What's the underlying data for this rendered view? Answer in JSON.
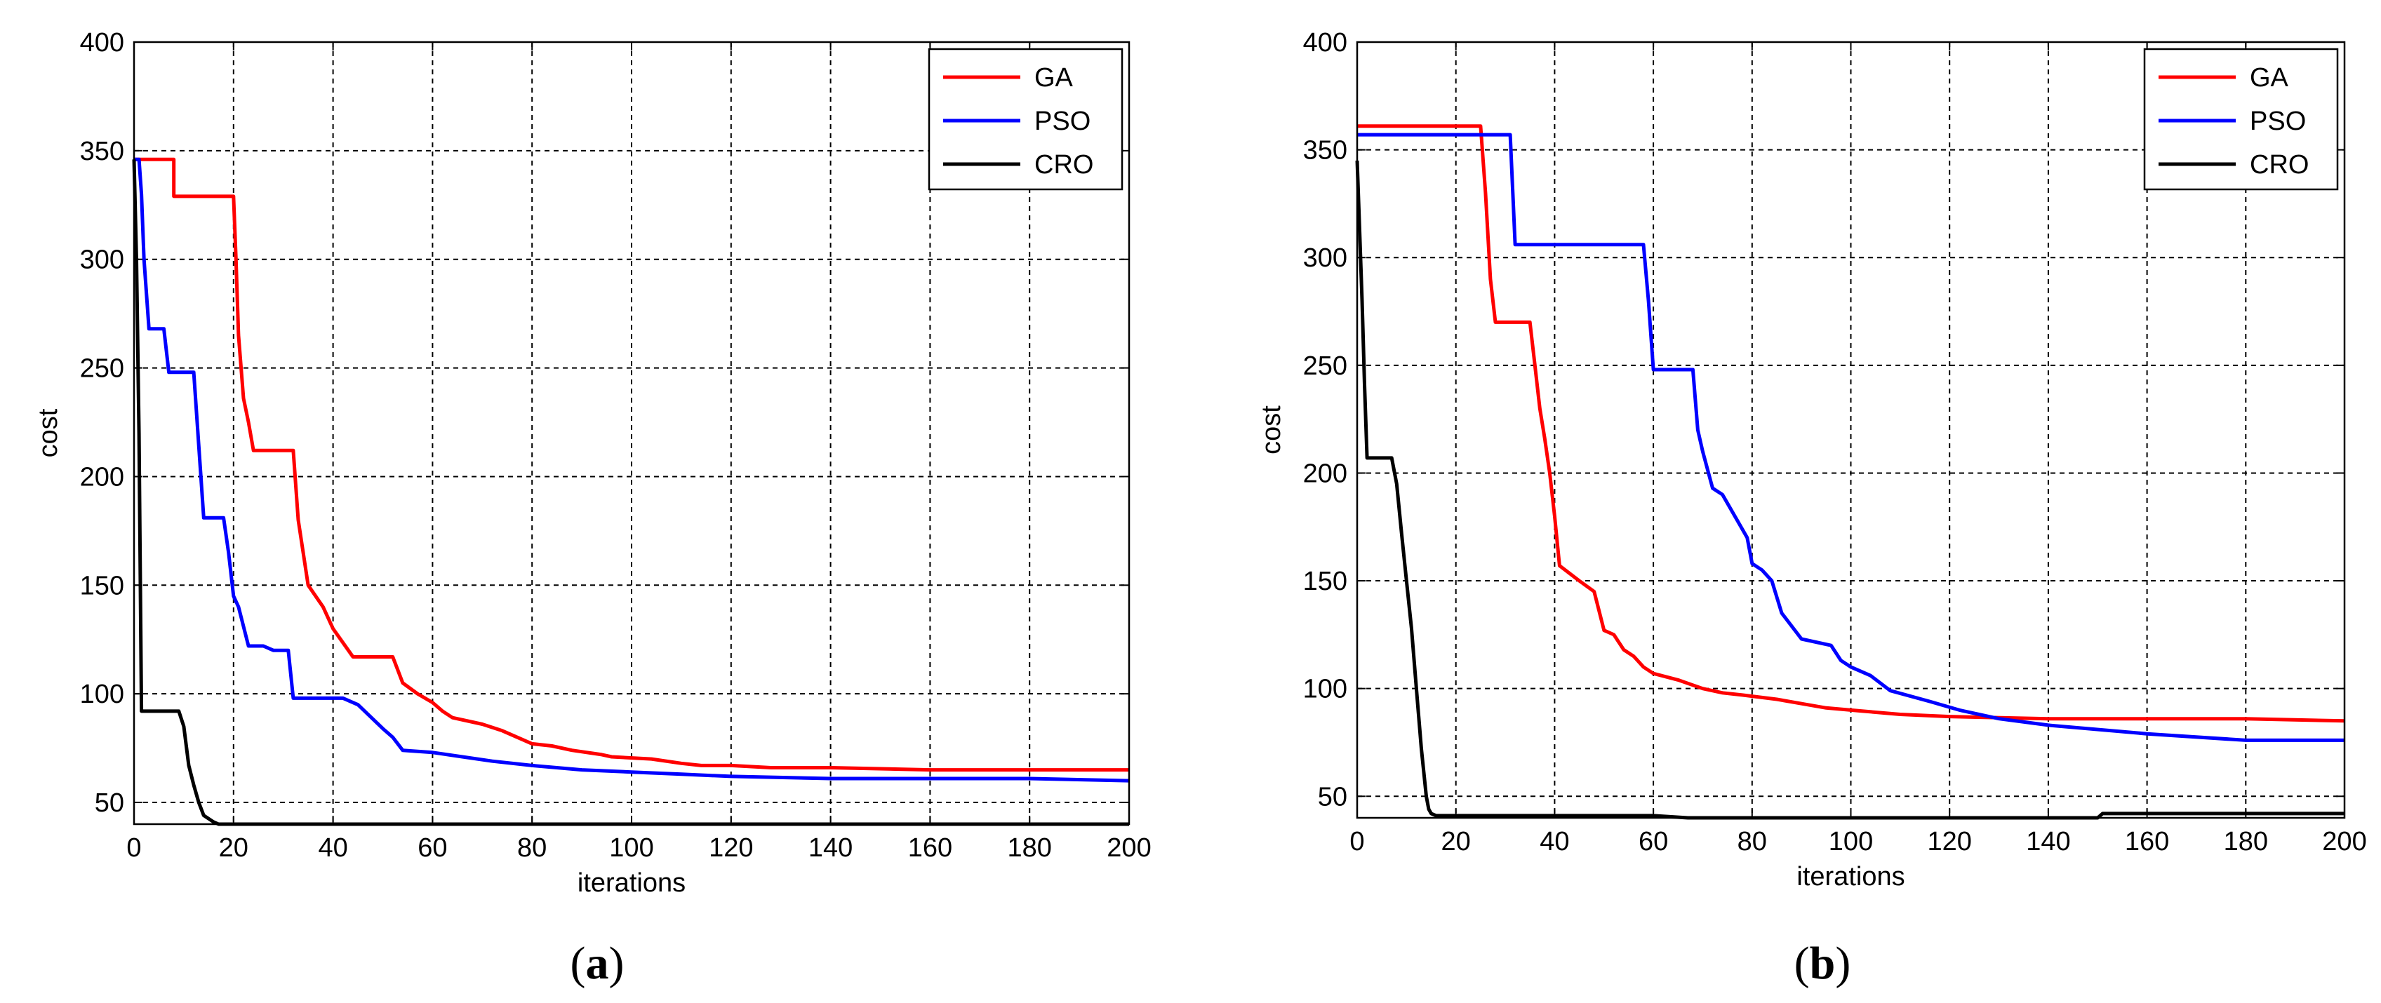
{
  "chart_data": [
    {
      "type": "line",
      "caption": "a",
      "xlabel": "iterations",
      "ylabel": "cost",
      "xlim": [
        0,
        200
      ],
      "ylim": [
        40,
        400
      ],
      "xticks": [
        "0",
        "20",
        "40",
        "60",
        "80",
        "100",
        "120",
        "140",
        "160",
        "180",
        "200"
      ],
      "yticks": [
        "50",
        "100",
        "150",
        "200",
        "250",
        "300",
        "350",
        "400"
      ],
      "grid": true,
      "legend": "top-right",
      "colors": {
        "GA": "#ff0000",
        "PSO": "#0000ff",
        "CRO": "#000000"
      },
      "series": [
        {
          "name": "GA",
          "x": [
            0,
            8,
            8,
            20,
            20.5,
            21,
            22,
            23,
            24,
            32,
            33,
            35,
            38,
            40,
            44,
            52,
            54,
            57,
            60,
            62,
            64,
            70,
            74,
            78,
            80,
            84,
            88,
            94,
            96,
            104,
            110,
            114,
            120,
            128,
            140,
            160,
            200
          ],
          "y": [
            346,
            346,
            329,
            329,
            300,
            265,
            236,
            225,
            212,
            212,
            180,
            150,
            140,
            130,
            117,
            117,
            105,
            100,
            96,
            92,
            89,
            86,
            83,
            79,
            77,
            76,
            74,
            72,
            71,
            70,
            68,
            67,
            67,
            66,
            66,
            65,
            65
          ]
        },
        {
          "name": "PSO",
          "x": [
            0,
            1,
            1.5,
            2,
            3,
            6,
            7,
            12,
            14,
            18,
            19,
            20,
            21,
            23,
            26,
            28,
            31,
            32,
            42,
            45,
            50,
            52,
            54,
            60,
            66,
            72,
            80,
            90,
            100,
            110,
            120,
            140,
            180,
            200
          ],
          "y": [
            346,
            346,
            330,
            300,
            268,
            268,
            248,
            248,
            181,
            181,
            165,
            145,
            140,
            122,
            122,
            120,
            120,
            98,
            98,
            95,
            84,
            80,
            74,
            73,
            71,
            69,
            67,
            65,
            64,
            63,
            62,
            61,
            61,
            60
          ]
        },
        {
          "name": "CRO",
          "x": [
            0,
            0.5,
            1,
            1.5,
            9,
            10,
            11,
            12,
            13,
            14,
            16,
            17,
            20,
            40,
            60,
            100,
            140,
            200
          ],
          "y": [
            346,
            300,
            220,
            92,
            92,
            85,
            67,
            58,
            50,
            44,
            41,
            40,
            40,
            40,
            40,
            40,
            40,
            40
          ]
        }
      ]
    },
    {
      "type": "line",
      "caption": "b",
      "xlabel": "iterations",
      "ylabel": "cost",
      "xlim": [
        0,
        200
      ],
      "ylim": [
        40,
        400
      ],
      "xticks": [
        "0",
        "20",
        "40",
        "60",
        "80",
        "100",
        "120",
        "140",
        "160",
        "180",
        "200"
      ],
      "yticks": [
        "50",
        "100",
        "150",
        "200",
        "250",
        "300",
        "350",
        "400"
      ],
      "grid": true,
      "legend": "top-right",
      "colors": {
        "GA": "#ff0000",
        "PSO": "#0000ff",
        "CRO": "#000000"
      },
      "series": [
        {
          "name": "GA",
          "x": [
            0,
            25,
            26,
            27,
            28,
            35,
            36,
            37,
            38,
            39,
            40,
            41,
            45,
            48,
            50,
            52,
            54,
            56,
            58,
            60,
            65,
            70,
            74,
            78,
            85,
            90,
            95,
            100,
            110,
            120,
            140,
            160,
            180,
            200
          ],
          "y": [
            361,
            361,
            330,
            290,
            270,
            270,
            250,
            230,
            216,
            200,
            180,
            157,
            150,
            145,
            127,
            125,
            118,
            115,
            110,
            107,
            104,
            100,
            98,
            97,
            95,
            93,
            91,
            90,
            88,
            87,
            86,
            86,
            86,
            85
          ]
        },
        {
          "name": "PSO",
          "x": [
            0,
            31,
            32,
            58,
            59,
            60,
            68,
            69,
            70,
            72,
            74,
            77,
            79,
            80,
            82,
            84,
            86,
            90,
            96,
            98,
            100,
            104,
            108,
            116,
            122,
            130,
            140,
            160,
            180,
            200
          ],
          "y": [
            357,
            357,
            306,
            306,
            280,
            248,
            248,
            220,
            210,
            193,
            190,
            178,
            170,
            158,
            155,
            150,
            135,
            123,
            120,
            113,
            110,
            106,
            99,
            94,
            90,
            86,
            83,
            79,
            76,
            76
          ]
        },
        {
          "name": "CRO",
          "x": [
            0,
            1,
            1.5,
            2,
            7,
            8,
            9,
            10,
            11,
            12,
            13,
            14,
            14.5,
            15,
            16,
            60,
            67,
            90,
            150,
            151,
            200
          ],
          "y": [
            345,
            280,
            240,
            207,
            207,
            195,
            172,
            150,
            128,
            100,
            72,
            50,
            44,
            42,
            41,
            41,
            40,
            40,
            40,
            42,
            42
          ]
        }
      ]
    }
  ]
}
